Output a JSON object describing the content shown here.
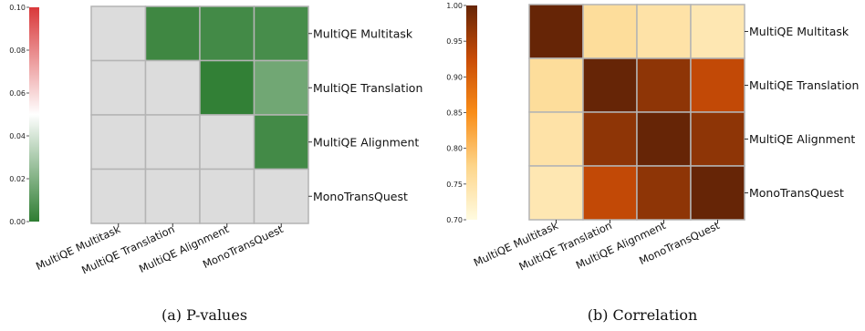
{
  "chart_data": [
    {
      "type": "heatmap",
      "caption": "(a) P-values",
      "rows": [
        "MultiQE Multitask",
        "MultiQE Translation",
        "MultiQE Alignment",
        "MonoTransQuest"
      ],
      "cols": [
        "MultiQE Multitask",
        "MultiQE Translation",
        "MultiQE Alignment",
        "MonoTransQuest"
      ],
      "values": [
        [
          null,
          0.004,
          0.005,
          0.006
        ],
        [
          null,
          null,
          0.001,
          0.016
        ],
        [
          null,
          null,
          null,
          0.005
        ],
        [
          null,
          null,
          null,
          null
        ]
      ],
      "masked_color": "#dcdcdc",
      "colorbar": {
        "vmin": 0.0,
        "vmax": 0.1,
        "ticks": [
          "0.00",
          "0.02",
          "0.04",
          "0.06",
          "0.08",
          "0.10"
        ],
        "colormap": [
          "#2e7d32",
          "#ffffff",
          "#d9383a"
        ]
      }
    },
    {
      "type": "heatmap",
      "caption": "(b) Correlation",
      "rows": [
        "MultiQE Multitask",
        "MultiQE Translation",
        "MultiQE Alignment",
        "MonoTransQuest"
      ],
      "cols": [
        "MultiQE Multitask",
        "MultiQE Translation",
        "MultiQE Alignment",
        "MonoTransQuest"
      ],
      "values": [
        [
          1.0,
          0.76,
          0.75,
          0.74
        ],
        [
          0.76,
          1.0,
          0.97,
          0.93
        ],
        [
          0.75,
          0.97,
          1.0,
          0.97
        ],
        [
          0.74,
          0.93,
          0.97,
          1.0
        ]
      ],
      "colorbar": {
        "vmin": 0.7,
        "vmax": 1.0,
        "ticks": [
          "0.70",
          "0.75",
          "0.80",
          "0.85",
          "0.90",
          "0.95",
          "1.00"
        ],
        "colormap": [
          "#fffbe0",
          "#fdd58a",
          "#f98d18",
          "#c94c06",
          "#662506"
        ]
      }
    }
  ]
}
